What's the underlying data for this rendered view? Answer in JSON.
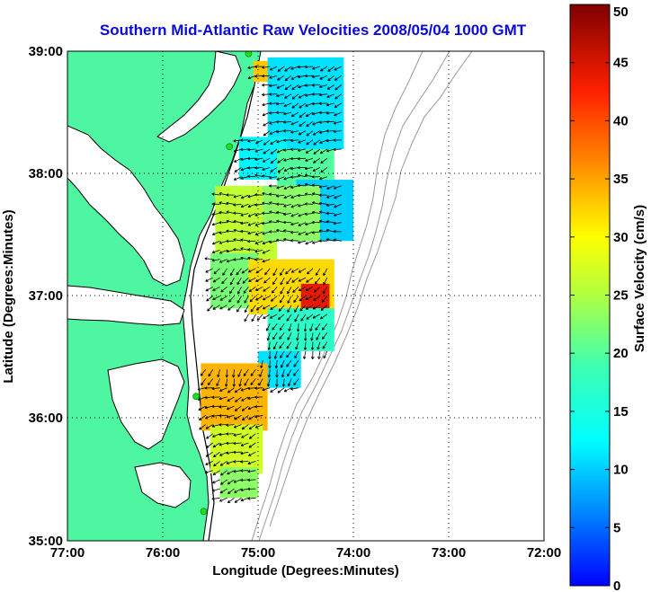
{
  "title": "Southern Mid-Atlantic Raw Velocities 2008/05/04 1000 GMT",
  "xlabel": "Longitude (Degrees:Minutes)",
  "ylabel": "Latitude (Degrees:Minutes)",
  "colorbar_label": "Surface Velocity (cm/s)",
  "x_ticks": [
    "77:00",
    "76:00",
    "75:00",
    "74:00",
    "73:00",
    "72:00"
  ],
  "y_ticks": [
    "39:00",
    "38:00",
    "37:00",
    "36:00",
    "35:00"
  ],
  "colorbar_ticks": [
    "50",
    "45",
    "40",
    "35",
    "30",
    "25",
    "20",
    "15",
    "10",
    "5",
    "0"
  ],
  "colors": {
    "land": "#4ef6a2",
    "coast": "#000000",
    "bathymetry": "#999999",
    "station": "#22dd22",
    "title": "#0a0ad8",
    "arrow": "#000000"
  },
  "chart_data": {
    "type": "heatmap",
    "title": "Southern Mid-Atlantic Raw Velocities 2008/05/04 1000 GMT",
    "xlabel": "Longitude (Degrees:Minutes)",
    "ylabel": "Latitude (Degrees:Minutes)",
    "xlim": [
      -77.0,
      -72.0
    ],
    "ylim": [
      35.0,
      39.0
    ],
    "grid": true,
    "colorbar": {
      "label": "Surface Velocity (cm/s)",
      "range": [
        0,
        50
      ],
      "colormap": "jet"
    },
    "stations": [
      {
        "lon": -75.1,
        "lat": 38.98
      },
      {
        "lon": -75.3,
        "lat": 38.22
      },
      {
        "lon": -75.65,
        "lat": 36.18
      },
      {
        "lon": -75.57,
        "lat": 35.24
      }
    ],
    "velocity_zones": [
      {
        "lon_min": -75.05,
        "lon_max": -74.5,
        "lat_min": 38.75,
        "lat_max": 38.92,
        "speed": 33
      },
      {
        "lon_min": -74.9,
        "lon_max": -74.1,
        "lat_min": 38.2,
        "lat_max": 38.95,
        "speed": 11
      },
      {
        "lon_min": -75.2,
        "lon_max": -74.7,
        "lat_min": 37.95,
        "lat_max": 38.3,
        "speed": 12
      },
      {
        "lon_min": -74.8,
        "lon_max": -74.2,
        "lat_min": 37.9,
        "lat_max": 38.2,
        "speed": 20
      },
      {
        "lon_min": -74.6,
        "lon_max": -74.0,
        "lat_min": 37.45,
        "lat_max": 37.95,
        "speed": 10
      },
      {
        "lon_min": -75.45,
        "lon_max": -74.8,
        "lat_min": 37.3,
        "lat_max": 37.9,
        "speed": 26
      },
      {
        "lon_min": -74.95,
        "lon_max": -74.35,
        "lat_min": 37.45,
        "lat_max": 37.9,
        "speed": 23
      },
      {
        "lon_min": -75.5,
        "lon_max": -75.0,
        "lat_min": 36.9,
        "lat_max": 37.35,
        "speed": 22
      },
      {
        "lon_min": -75.1,
        "lon_max": -74.2,
        "lat_min": 36.85,
        "lat_max": 37.3,
        "speed": 32
      },
      {
        "lon_min": -74.55,
        "lon_max": -74.25,
        "lat_min": 36.88,
        "lat_max": 37.1,
        "speed": 44
      },
      {
        "lon_min": -74.9,
        "lon_max": -74.2,
        "lat_min": 36.55,
        "lat_max": 36.9,
        "speed": 17
      },
      {
        "lon_min": -75.0,
        "lon_max": -74.55,
        "lat_min": 36.25,
        "lat_max": 36.55,
        "speed": 11
      },
      {
        "lon_min": -75.6,
        "lon_max": -74.9,
        "lat_min": 35.9,
        "lat_max": 36.45,
        "speed": 34
      },
      {
        "lon_min": -75.5,
        "lon_max": -74.95,
        "lat_min": 35.55,
        "lat_max": 35.95,
        "speed": 27
      },
      {
        "lon_min": -75.4,
        "lon_max": -75.0,
        "lat_min": 35.35,
        "lat_max": 35.6,
        "speed": 23
      }
    ],
    "flow_bands": [
      {
        "lat_min": 38.0,
        "lat_max": 38.95,
        "dir_deg": 250
      },
      {
        "lat_min": 37.3,
        "lat_max": 38.0,
        "dir_deg": 265
      },
      {
        "lat_min": 36.85,
        "lat_max": 37.3,
        "dir_deg": 225
      },
      {
        "lat_min": 36.3,
        "lat_max": 36.85,
        "dir_deg": 200
      },
      {
        "lat_min": 35.35,
        "lat_max": 36.3,
        "dir_deg": 250
      }
    ]
  }
}
